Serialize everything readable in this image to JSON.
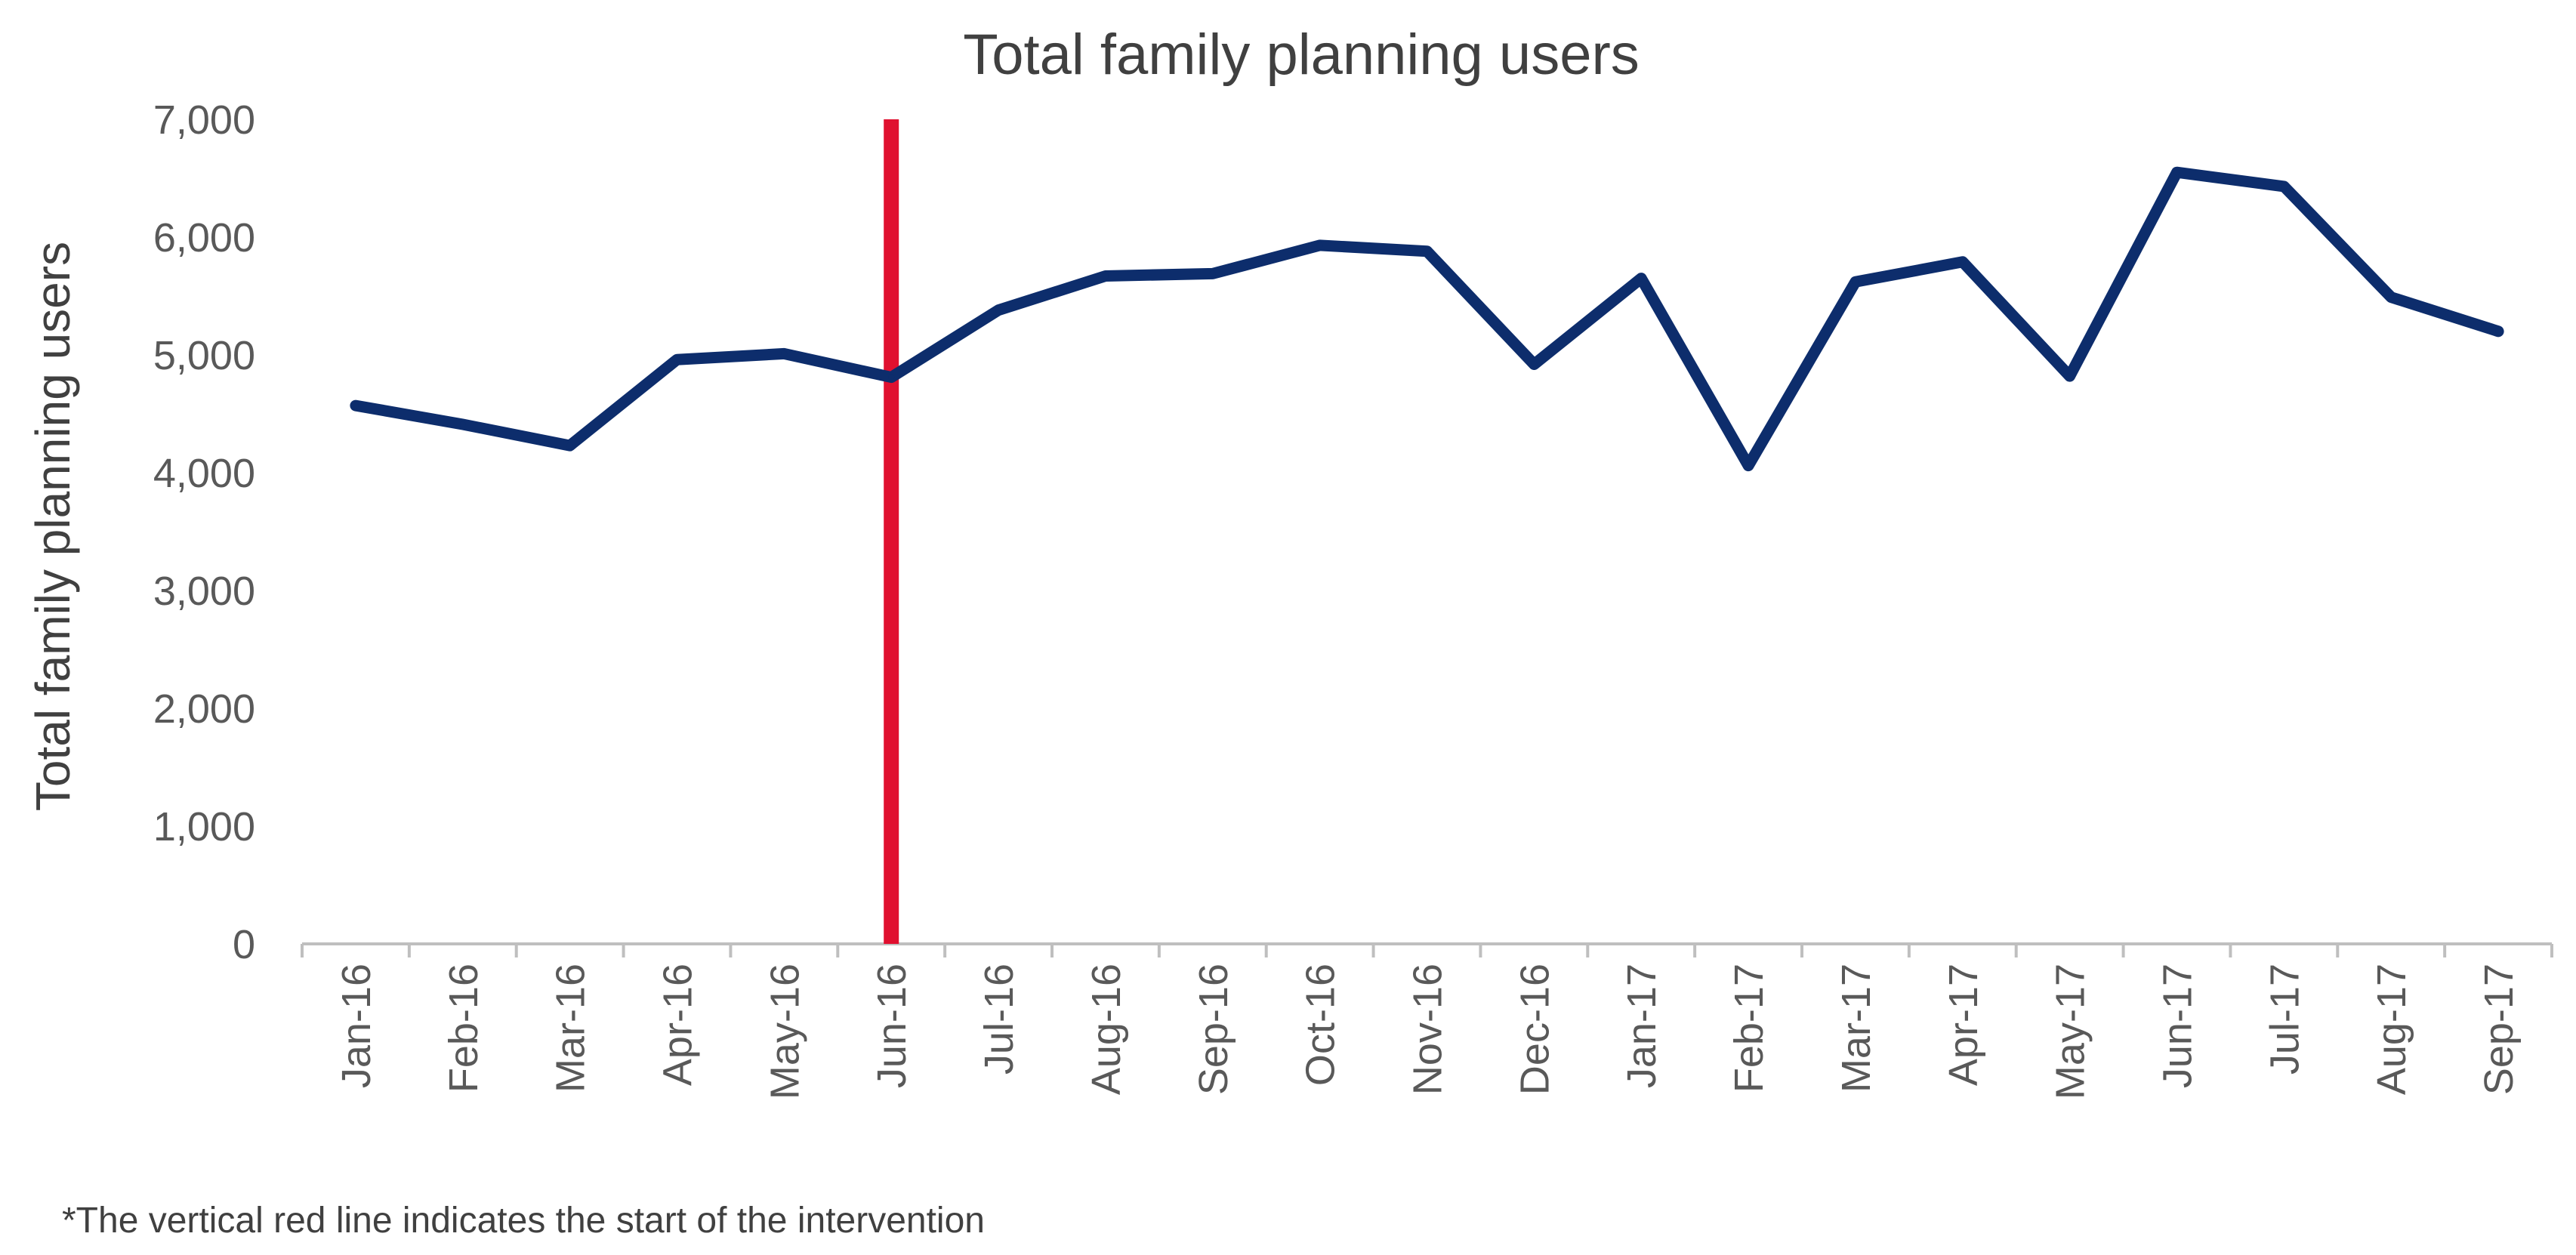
{
  "chart_data": {
    "type": "line",
    "title": "Total family planning users",
    "xlabel": "",
    "ylabel": "Total family planning users",
    "categories": [
      "Jan-16",
      "Feb-16",
      "Mar-16",
      "Apr-16",
      "May-16",
      "Jun-16",
      "Jul-16",
      "Aug-16",
      "Sep-16",
      "Oct-16",
      "Nov-16",
      "Dec-16",
      "Jan-17",
      "Feb-17",
      "Mar-17",
      "Apr-17",
      "May-17",
      "Jun-17",
      "Jul-17",
      "Aug-17",
      "Sep-17"
    ],
    "series": [
      {
        "values": [
          4570,
          4410,
          4230,
          4960,
          5010,
          4810,
          5380,
          5670,
          5690,
          5930,
          5880,
          4920,
          5650,
          4060,
          5620,
          5790,
          4820,
          6550,
          6430,
          5490,
          5200
        ]
      }
    ],
    "ylim": [
      0,
      7000
    ],
    "yticks": [
      0,
      1000,
      2000,
      3000,
      4000,
      5000,
      6000,
      7000
    ],
    "ytick_labels": [
      "0",
      "1,000",
      "2,000",
      "3,000",
      "4,000",
      "5,000",
      "6,000",
      "7,000"
    ],
    "grid": false,
    "legend": "none",
    "intervention_marker": {
      "category": "Jun-16",
      "color": "#E0102F"
    },
    "line_color": "#0D2D6C",
    "axis_color": "#BFBFBF",
    "footnote": "*The vertical red line indicates the start of the intervention"
  }
}
